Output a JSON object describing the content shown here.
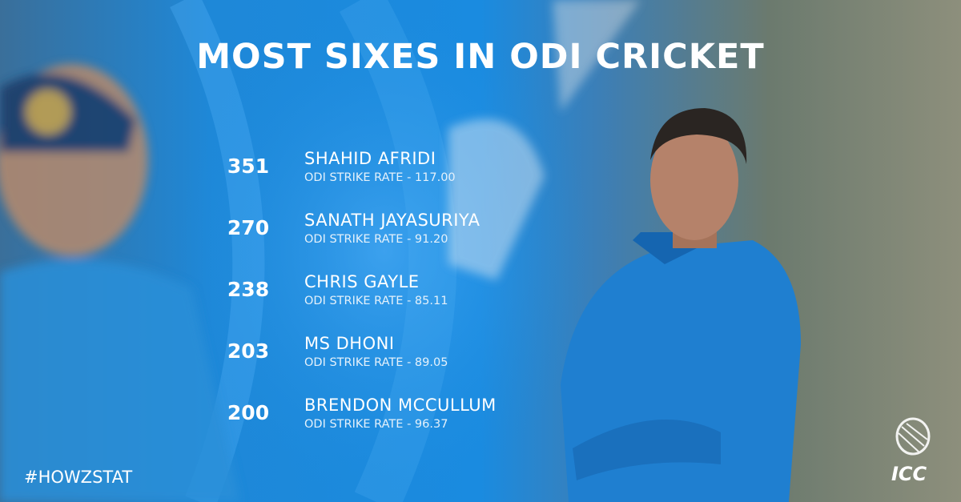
{
  "title": "MOST SIXES IN ODI CRICKET",
  "entries": [
    {
      "sixes": 351,
      "name": "SHAHID AFRIDI",
      "detail": "ODI STRIKE RATE - 117.00"
    },
    {
      "sixes": 270,
      "name": "SANATH JAYASURIYA",
      "detail": "ODI STRIKE RATE - 91.20"
    },
    {
      "sixes": 238,
      "name": "CHRIS GAYLE",
      "detail": "ODI STRIKE RATE - 85.11"
    },
    {
      "sixes": 203,
      "name": "MS DHONI",
      "detail": "ODI STRIKE RATE - 89.05"
    },
    {
      "sixes": 200,
      "name": "BRENDON MCCULLUM",
      "detail": "ODI STRIKE RATE - 96.37"
    }
  ],
  "hashtag": "#HOWZSTAT",
  "logo": "ICC"
}
